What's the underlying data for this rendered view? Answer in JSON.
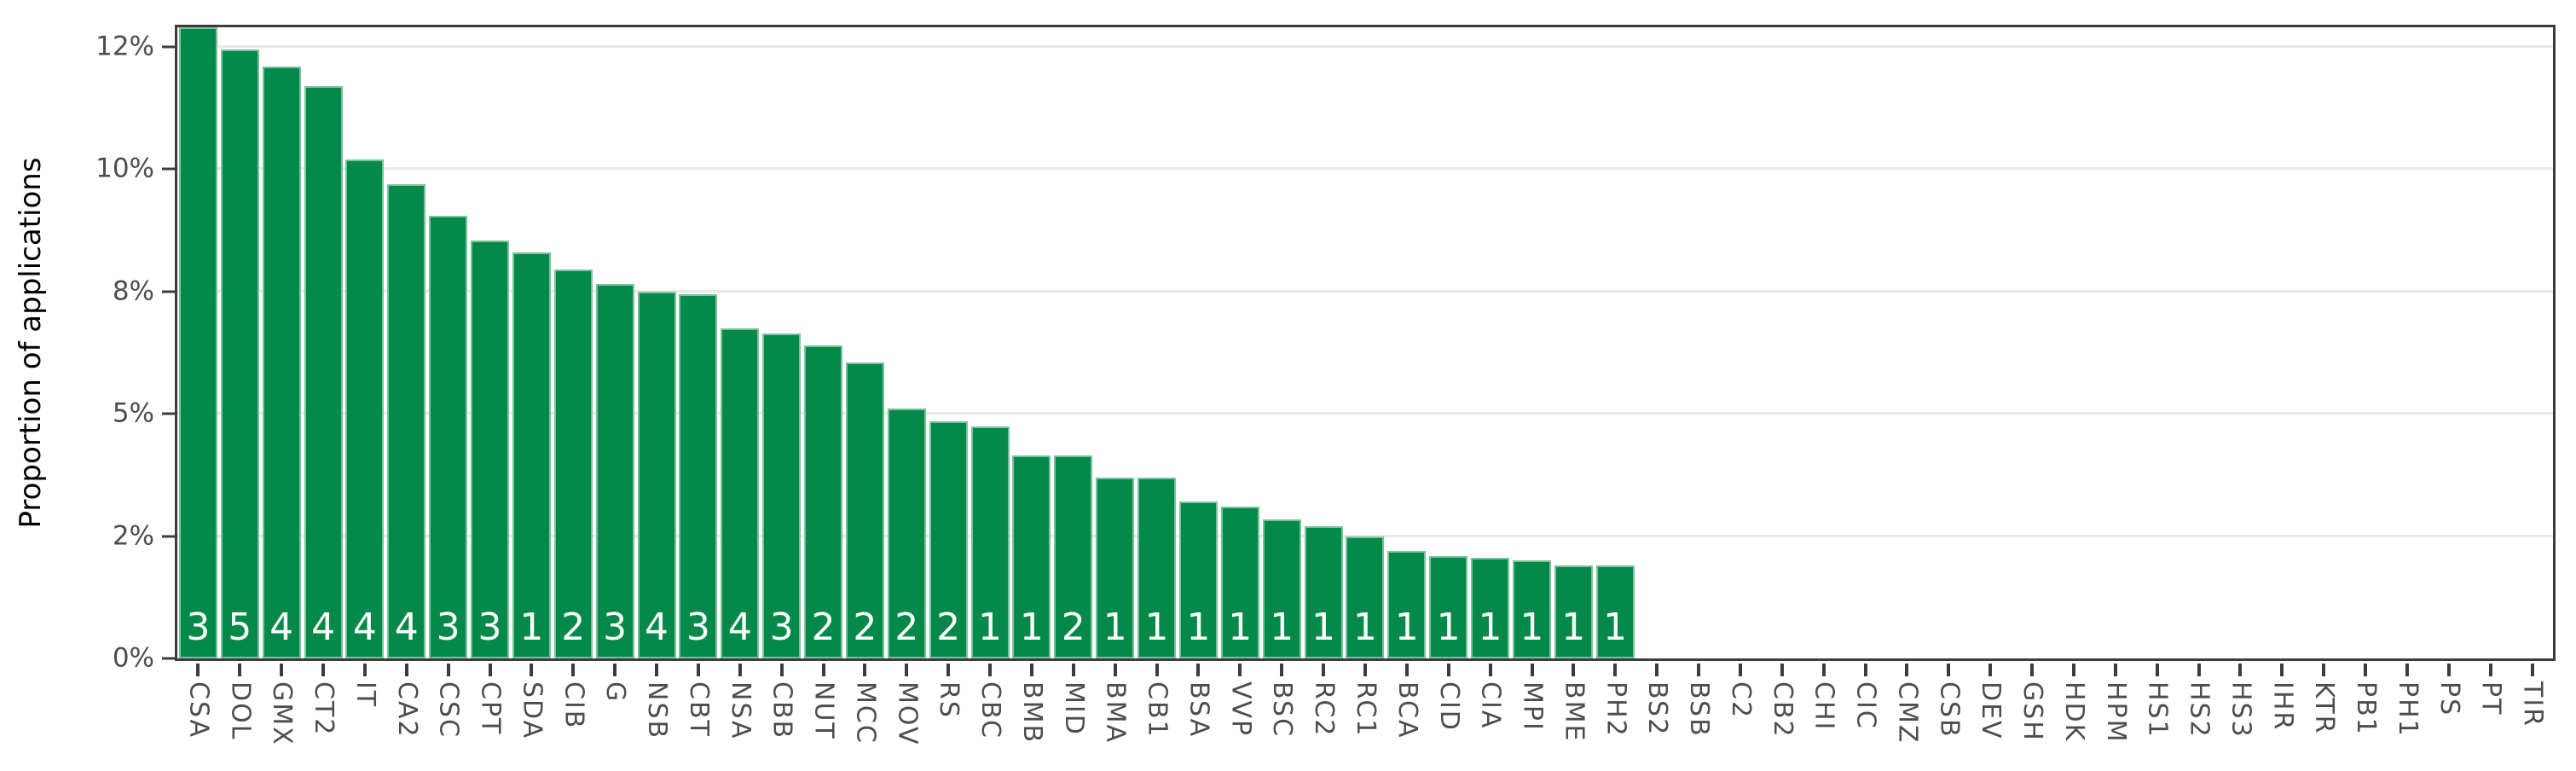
{
  "chart_data": {
    "type": "bar",
    "title": "",
    "xlabel": "",
    "ylabel": "Proportion of applications",
    "legend": "none",
    "grid": "horizontal-only",
    "y_axis": {
      "ticks": [
        {
          "label": "0%",
          "value": 0
        },
        {
          "label": "2%",
          "value": 2.5
        },
        {
          "label": "5%",
          "value": 5
        },
        {
          "label": "8%",
          "value": 7.5
        },
        {
          "label": "10%",
          "value": 10
        },
        {
          "label": "12%",
          "value": 12.5
        }
      ],
      "grid_values": [
        2.5,
        5,
        7.5,
        10,
        12.5
      ],
      "display_max": 12.9
    },
    "bars": [
      {
        "category": "CSA",
        "value": 13.0,
        "count": "3"
      },
      {
        "category": "DOL",
        "value": 12.45,
        "count": "5"
      },
      {
        "category": "GMX",
        "value": 12.1,
        "count": "4"
      },
      {
        "category": "CT2",
        "value": 11.7,
        "count": "4"
      },
      {
        "category": "IT",
        "value": 10.2,
        "count": "4"
      },
      {
        "category": "CA2",
        "value": 9.7,
        "count": "4"
      },
      {
        "category": "CSC",
        "value": 9.05,
        "count": "3"
      },
      {
        "category": "CPT",
        "value": 8.55,
        "count": "3"
      },
      {
        "category": "SDA",
        "value": 8.3,
        "count": "1"
      },
      {
        "category": "CIB",
        "value": 7.95,
        "count": "2"
      },
      {
        "category": "G",
        "value": 7.65,
        "count": "3"
      },
      {
        "category": "NSB",
        "value": 7.5,
        "count": "4"
      },
      {
        "category": "CBT",
        "value": 7.45,
        "count": "3"
      },
      {
        "category": "NSA",
        "value": 6.75,
        "count": "4"
      },
      {
        "category": "CBB",
        "value": 6.65,
        "count": "3"
      },
      {
        "category": "NUT",
        "value": 6.4,
        "count": "2"
      },
      {
        "category": "MCC",
        "value": 6.05,
        "count": "2"
      },
      {
        "category": "MOV",
        "value": 5.1,
        "count": "2"
      },
      {
        "category": "RS",
        "value": 4.85,
        "count": "2"
      },
      {
        "category": "CBC",
        "value": 4.75,
        "count": "1"
      },
      {
        "category": "BMB",
        "value": 4.15,
        "count": "1"
      },
      {
        "category": "MID",
        "value": 4.15,
        "count": "2"
      },
      {
        "category": "BMA",
        "value": 3.7,
        "count": "1"
      },
      {
        "category": "CB1",
        "value": 3.7,
        "count": "1"
      },
      {
        "category": "BSA",
        "value": 3.2,
        "count": "1"
      },
      {
        "category": "VVP",
        "value": 3.1,
        "count": "1"
      },
      {
        "category": "BSC",
        "value": 2.85,
        "count": "1"
      },
      {
        "category": "RC2",
        "value": 2.7,
        "count": "1"
      },
      {
        "category": "RC1",
        "value": 2.5,
        "count": "1"
      },
      {
        "category": "BCA",
        "value": 2.2,
        "count": "1"
      },
      {
        "category": "CID",
        "value": 2.1,
        "count": "1"
      },
      {
        "category": "CIA",
        "value": 2.05,
        "count": "1"
      },
      {
        "category": "MPI",
        "value": 2.0,
        "count": "1"
      },
      {
        "category": "BME",
        "value": 1.9,
        "count": "1"
      },
      {
        "category": "PH2",
        "value": 1.9,
        "count": "1"
      },
      {
        "category": "BS2",
        "value": 0,
        "count": null
      },
      {
        "category": "BSB",
        "value": 0,
        "count": null
      },
      {
        "category": "C2",
        "value": 0,
        "count": null
      },
      {
        "category": "CB2",
        "value": 0,
        "count": null
      },
      {
        "category": "CHI",
        "value": 0,
        "count": null
      },
      {
        "category": "CIC",
        "value": 0,
        "count": null
      },
      {
        "category": "CMZ",
        "value": 0,
        "count": null
      },
      {
        "category": "CSB",
        "value": 0,
        "count": null
      },
      {
        "category": "DEV",
        "value": 0,
        "count": null
      },
      {
        "category": "GSH",
        "value": 0,
        "count": null
      },
      {
        "category": "HDK",
        "value": 0,
        "count": null
      },
      {
        "category": "HPM",
        "value": 0,
        "count": null
      },
      {
        "category": "HS1",
        "value": 0,
        "count": null
      },
      {
        "category": "HS2",
        "value": 0,
        "count": null
      },
      {
        "category": "HS3",
        "value": 0,
        "count": null
      },
      {
        "category": "IHR",
        "value": 0,
        "count": null
      },
      {
        "category": "KTR",
        "value": 0,
        "count": null
      },
      {
        "category": "PB1",
        "value": 0,
        "count": null
      },
      {
        "category": "PH1",
        "value": 0,
        "count": null
      },
      {
        "category": "PS",
        "value": 0,
        "count": null
      },
      {
        "category": "PT",
        "value": 0,
        "count": null
      },
      {
        "category": "TIR",
        "value": 0,
        "count": null
      }
    ],
    "colors": {
      "bar": "#048948",
      "bar_edge": "#d6ecdf",
      "bar_count_text": "#ffffff",
      "panel_border": "#3c3c3c",
      "gridline": "#e9e9e9",
      "tick_label": "#4d4d4d",
      "axis_title": "#000000",
      "background": "#ffffff"
    }
  }
}
